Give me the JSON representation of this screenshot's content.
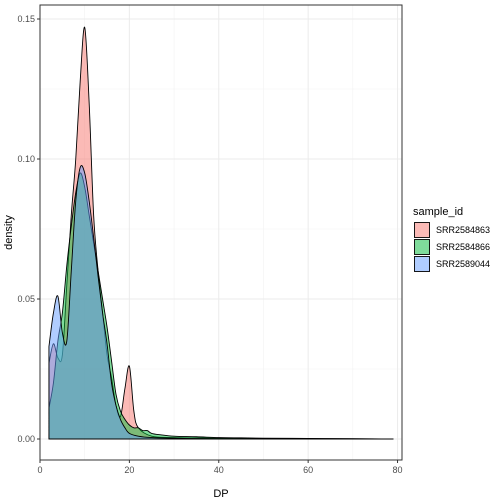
{
  "chart_data": {
    "type": "area",
    "xlabel": "DP",
    "ylabel": "density",
    "xlim": [
      0,
      81
    ],
    "ylim": [
      -0.0075,
      0.155
    ],
    "x_ticks": [
      0,
      20,
      40,
      60,
      80
    ],
    "x_tick_labels": [
      "0",
      "20",
      "40",
      "60",
      "80"
    ],
    "y_ticks": [
      0.0,
      0.05,
      0.1,
      0.15
    ],
    "y_tick_labels": [
      "0.00",
      "0.05",
      "0.10",
      "0.15"
    ],
    "grid": true,
    "legend": {
      "title": "sample_id",
      "placement": "right",
      "entries": [
        "SRR2584863",
        "SRR2584866",
        "SRR2589044"
      ]
    },
    "series": [
      {
        "name": "SRR2584863",
        "color": "#F8766D",
        "x": [
          2,
          3,
          4,
          5,
          6,
          7,
          8,
          9,
          10,
          11,
          12,
          13,
          14,
          15,
          16,
          17,
          18,
          19,
          20,
          21,
          22,
          25,
          30,
          40,
          60,
          79
        ],
        "y": [
          0.027,
          0.034,
          0.029,
          0.03,
          0.055,
          0.08,
          0.1,
          0.128,
          0.147,
          0.12,
          0.08,
          0.06,
          0.045,
          0.03,
          0.022,
          0.012,
          0.008,
          0.018,
          0.026,
          0.01,
          0.004,
          0.001,
          0.0005,
          0.0003,
          0.0001,
          0.0
        ]
      },
      {
        "name": "SRR2584866",
        "color": "#00BA38",
        "x": [
          2,
          3,
          4,
          5,
          6,
          7,
          8,
          9,
          10,
          11,
          12,
          13,
          14,
          15,
          16,
          17,
          18,
          19,
          20,
          21,
          22,
          23,
          24,
          25,
          27,
          30,
          35,
          40,
          45,
          50,
          60,
          70,
          79
        ],
        "y": [
          0.011,
          0.02,
          0.035,
          0.045,
          0.062,
          0.076,
          0.088,
          0.095,
          0.09,
          0.08,
          0.07,
          0.06,
          0.05,
          0.04,
          0.028,
          0.016,
          0.01,
          0.007,
          0.005,
          0.004,
          0.004,
          0.003,
          0.003,
          0.002,
          0.0015,
          0.001,
          0.0008,
          0.0005,
          0.0004,
          0.0003,
          0.0002,
          0.0001,
          0.0
        ]
      },
      {
        "name": "SRR2589044",
        "color": "#619CFF",
        "x": [
          2,
          3,
          4,
          5,
          6,
          7,
          8,
          9,
          10,
          11,
          12,
          13,
          14,
          15,
          16,
          17,
          18,
          19,
          20,
          22,
          25,
          30,
          40,
          79
        ],
        "y": [
          0.033,
          0.045,
          0.051,
          0.038,
          0.035,
          0.06,
          0.085,
          0.097,
          0.095,
          0.085,
          0.072,
          0.058,
          0.045,
          0.034,
          0.02,
          0.012,
          0.007,
          0.004,
          0.002,
          0.001,
          0.0005,
          0.0003,
          0.0001,
          0.0
        ]
      }
    ]
  }
}
